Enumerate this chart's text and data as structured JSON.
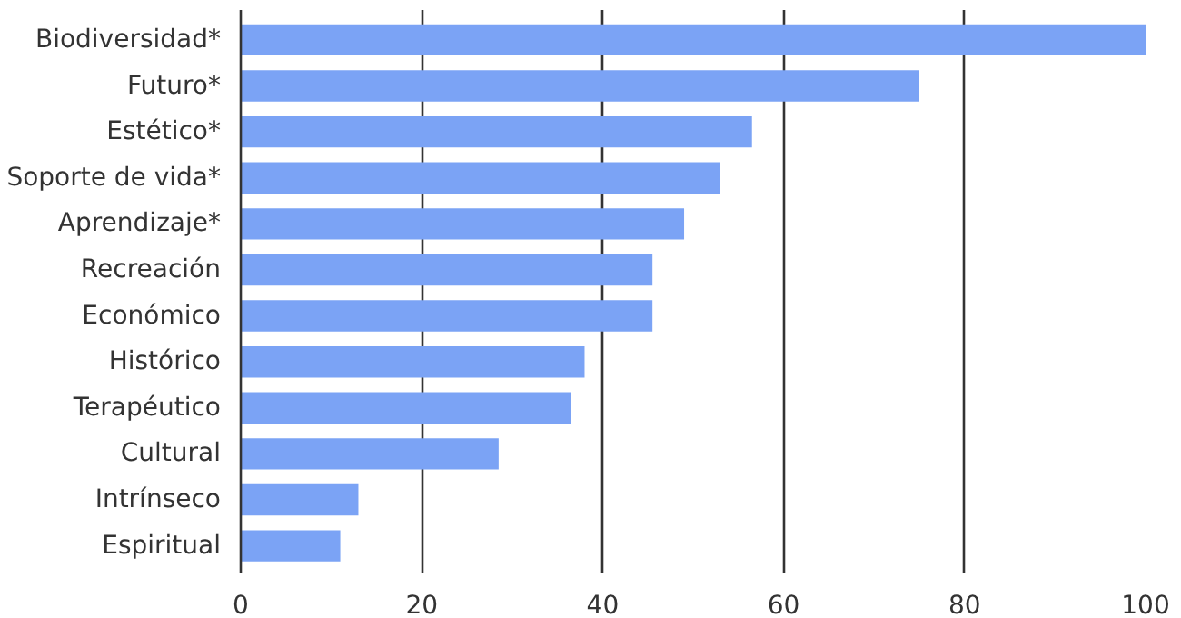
{
  "chart_data": {
    "type": "bar",
    "orientation": "horizontal",
    "categories": [
      "Biodiversidad*",
      "Futuro*",
      "Estético*",
      "Soporte de vida*",
      "Aprendizaje*",
      "Recreación",
      "Económico",
      "Histórico",
      "Terapéutico",
      "Cultural",
      "Intrínseco",
      "Espiritual"
    ],
    "values": [
      100,
      75,
      56.5,
      53,
      49,
      45.5,
      45.5,
      38,
      36.5,
      28.5,
      13,
      11
    ],
    "color": "#7ba3f5",
    "xlim": [
      0,
      100
    ],
    "xticks": [
      0,
      20,
      40,
      60,
      80,
      100
    ],
    "grid": "x"
  }
}
